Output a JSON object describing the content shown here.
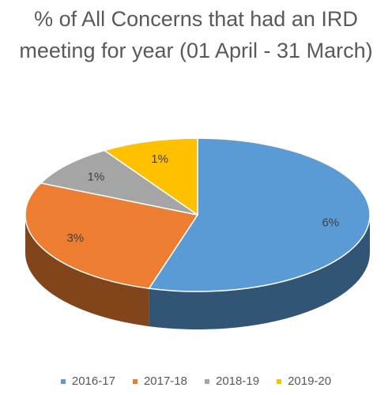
{
  "chart_data": {
    "type": "pie",
    "title": "% of All Concerns that had an IRD meeting for year (01 April - 31 March)",
    "categories": [
      "2016-17",
      "2017-18",
      "2018-19",
      "2019-20"
    ],
    "values": [
      6,
      3,
      1,
      1
    ],
    "value_labels": [
      "6%",
      "3%",
      "1%",
      "1%"
    ],
    "colors": [
      "#5b9bd5",
      "#ed7d31",
      "#a5a5a5",
      "#ffc000"
    ],
    "legend": "bottom"
  }
}
